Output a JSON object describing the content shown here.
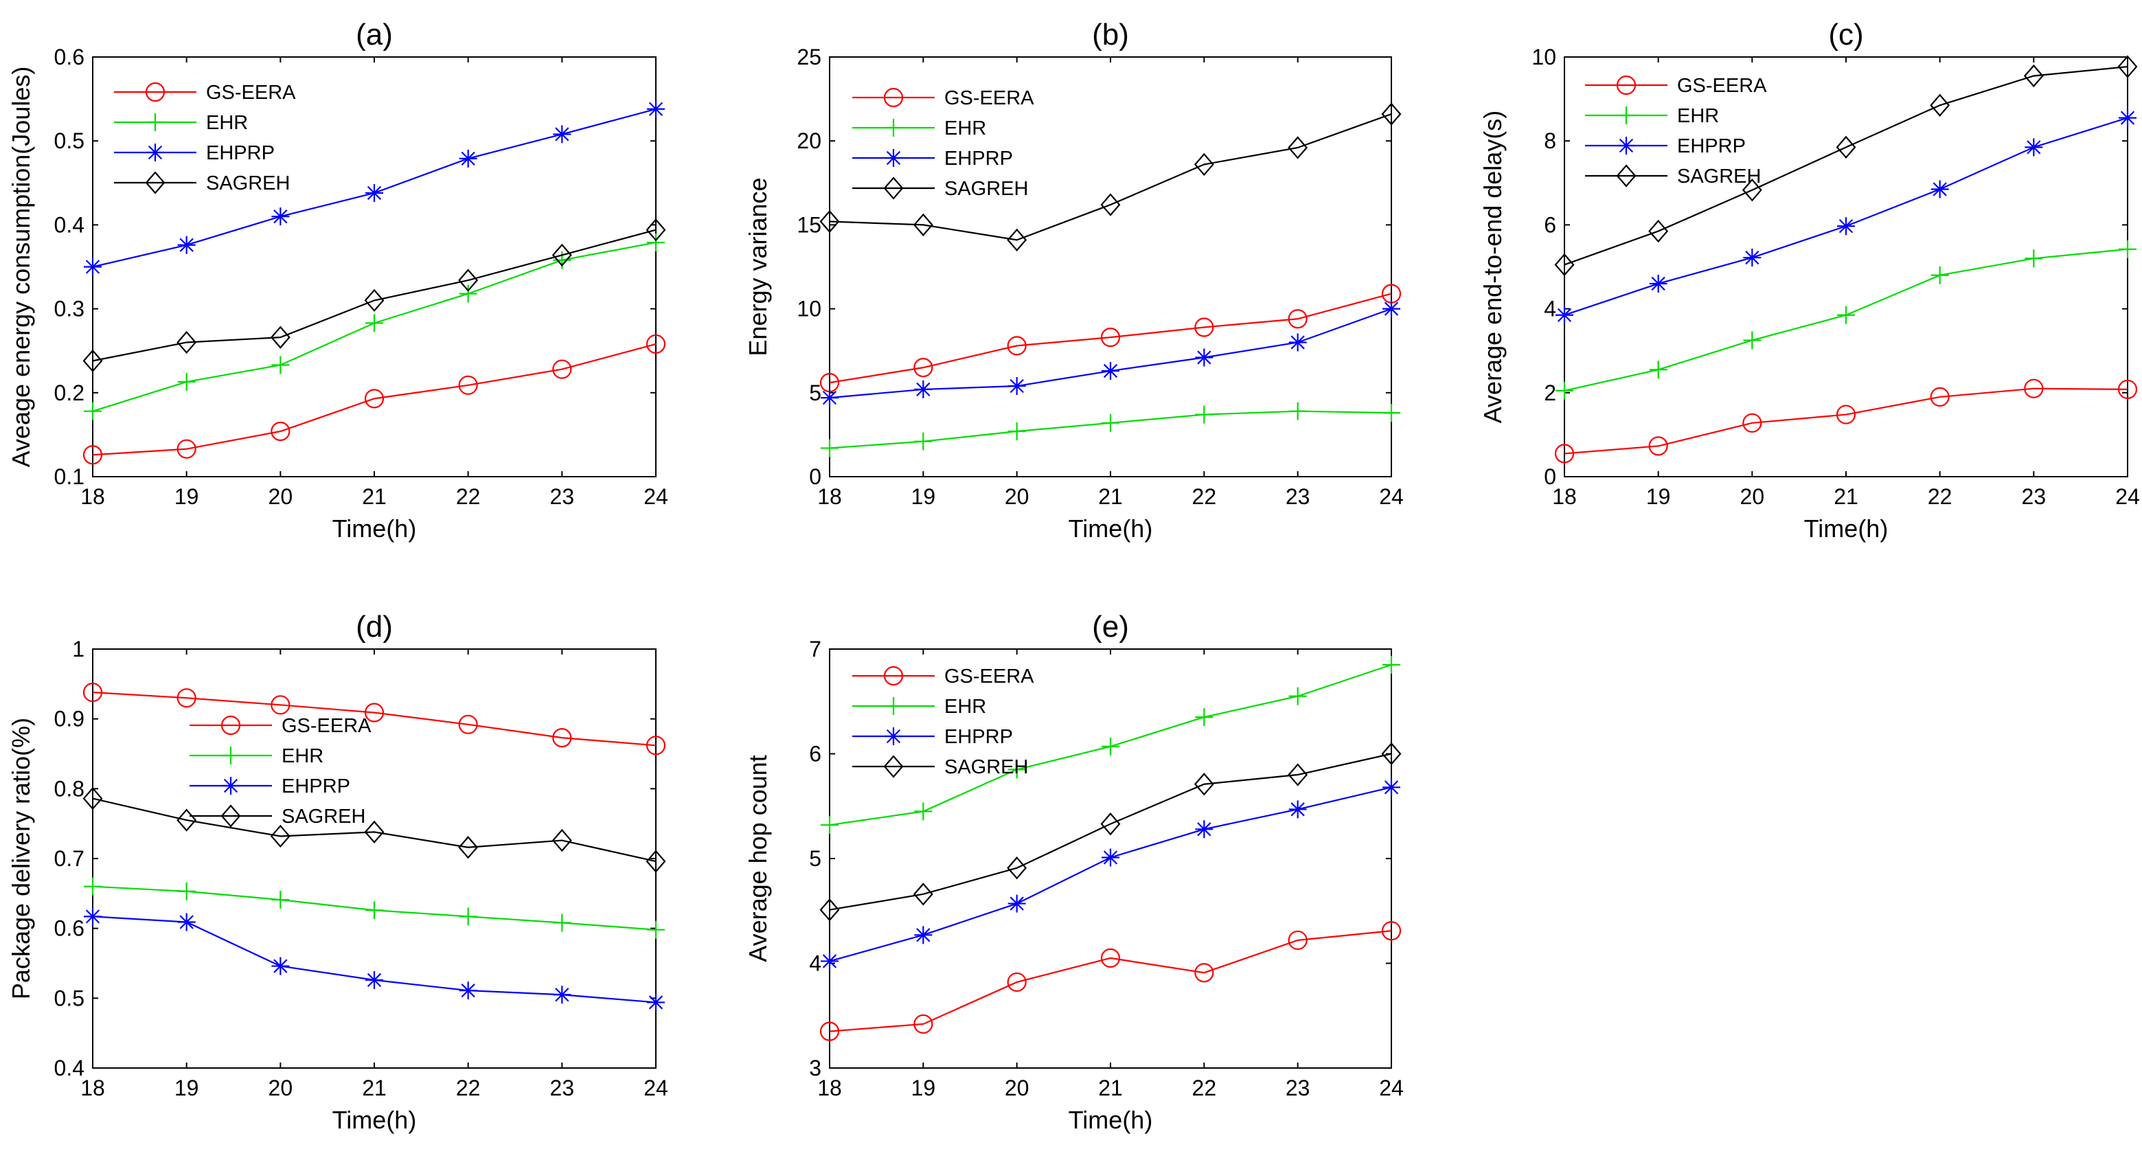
{
  "colors": {
    "GS-EERA": "#ff0000",
    "EHR": "#00dd00",
    "EHPRP": "#0000ff",
    "SAGREH": "#000000"
  },
  "markers": {
    "GS-EERA": "circle",
    "EHR": "plus",
    "EHPRP": "asterisk",
    "SAGREH": "diamond"
  },
  "chart_data": [
    {
      "type": "line",
      "title": "(a)",
      "xlabel": "Time(h)",
      "ylabel": "Aveage energy consumption(Joules)",
      "x": [
        18,
        19,
        20,
        21,
        22,
        23,
        24
      ],
      "xlim": [
        18,
        24
      ],
      "ylim": [
        0.1,
        0.6
      ],
      "yticks": [
        0.1,
        0.2,
        0.3,
        0.4,
        0.5,
        0.6
      ],
      "ytick_labels": [
        "0.1",
        "0.2",
        "0.3",
        "0.4",
        "0.5",
        "0.6"
      ],
      "legend": "top-left",
      "series": [
        {
          "name": "GS-EERA",
          "values": [
            0.126,
            0.133,
            0.154,
            0.193,
            0.209,
            0.228,
            0.258
          ]
        },
        {
          "name": "EHR",
          "values": [
            0.178,
            0.213,
            0.233,
            0.283,
            0.318,
            0.358,
            0.379
          ]
        },
        {
          "name": "EHPRP",
          "values": [
            0.35,
            0.376,
            0.41,
            0.438,
            0.479,
            0.508,
            0.538
          ]
        },
        {
          "name": "SAGREH",
          "values": [
            0.238,
            0.26,
            0.266,
            0.31,
            0.334,
            0.364,
            0.394
          ]
        }
      ]
    },
    {
      "type": "line",
      "title": "(b)",
      "xlabel": "Time(h)",
      "ylabel": "Energy variance",
      "x": [
        18,
        19,
        20,
        21,
        22,
        23,
        24
      ],
      "xlim": [
        18,
        24
      ],
      "ylim": [
        0,
        25
      ],
      "yticks": [
        0,
        5,
        10,
        15,
        20,
        25
      ],
      "ytick_labels": [
        "0",
        "5",
        "10",
        "15",
        "20",
        "25"
      ],
      "legend": "top-left",
      "series": [
        {
          "name": "GS-EERA",
          "values": [
            5.6,
            6.5,
            7.8,
            8.3,
            8.9,
            9.4,
            10.9
          ]
        },
        {
          "name": "EHR",
          "values": [
            1.7,
            2.1,
            2.7,
            3.2,
            3.7,
            3.9,
            3.8
          ]
        },
        {
          "name": "EHPRP",
          "values": [
            4.7,
            5.2,
            5.4,
            6.3,
            7.1,
            8.0,
            10.0
          ]
        },
        {
          "name": "SAGREH",
          "values": [
            15.2,
            15.0,
            14.1,
            16.2,
            18.6,
            19.6,
            21.6
          ]
        }
      ]
    },
    {
      "type": "line",
      "title": "(c)",
      "xlabel": "Time(h)",
      "ylabel": "Average end-to-end delay(s)",
      "x": [
        18,
        19,
        20,
        21,
        22,
        23,
        24
      ],
      "xlim": [
        18,
        24
      ],
      "ylim": [
        0,
        10
      ],
      "yticks": [
        0,
        2,
        4,
        6,
        8,
        10
      ],
      "ytick_labels": [
        "0",
        "2",
        "4",
        "6",
        "8",
        "10"
      ],
      "legend": "top-left",
      "series": [
        {
          "name": "GS-EERA",
          "values": [
            0.55,
            0.73,
            1.28,
            1.48,
            1.9,
            2.1,
            2.08
          ]
        },
        {
          "name": "EHR",
          "values": [
            2.05,
            2.55,
            3.25,
            3.85,
            4.8,
            5.2,
            5.42
          ]
        },
        {
          "name": "EHPRP",
          "values": [
            3.85,
            4.6,
            5.22,
            5.97,
            6.85,
            7.85,
            8.55
          ]
        },
        {
          "name": "SAGREH",
          "values": [
            5.05,
            5.85,
            6.83,
            7.85,
            8.85,
            9.55,
            9.77
          ]
        }
      ]
    },
    {
      "type": "line",
      "title": "(d)",
      "xlabel": "Time(h)",
      "ylabel": "Package delivery ratio(%)",
      "x": [
        18,
        19,
        20,
        21,
        22,
        23,
        24
      ],
      "xlim": [
        18,
        24
      ],
      "ylim": [
        0.4,
        1.0
      ],
      "yticks": [
        0.4,
        0.5,
        0.6,
        0.7,
        0.8,
        0.9,
        1.0
      ],
      "ytick_labels": [
        "0.4",
        "0.5",
        "0.6",
        "0.7",
        "0.8",
        "0.9",
        "1"
      ],
      "legend": "top-center",
      "series": [
        {
          "name": "GS-EERA",
          "values": [
            0.938,
            0.93,
            0.92,
            0.909,
            0.892,
            0.873,
            0.862
          ]
        },
        {
          "name": "EHR",
          "values": [
            0.66,
            0.653,
            0.641,
            0.626,
            0.617,
            0.608,
            0.598
          ]
        },
        {
          "name": "EHPRP",
          "values": [
            0.617,
            0.609,
            0.546,
            0.526,
            0.511,
            0.505,
            0.494
          ]
        },
        {
          "name": "SAGREH",
          "values": [
            0.786,
            0.755,
            0.732,
            0.738,
            0.716,
            0.726,
            0.696
          ]
        }
      ]
    },
    {
      "type": "line",
      "title": "(e)",
      "xlabel": "Time(h)",
      "ylabel": "Average hop count",
      "x": [
        18,
        19,
        20,
        21,
        22,
        23,
        24
      ],
      "xlim": [
        18,
        24
      ],
      "ylim": [
        3,
        7
      ],
      "yticks": [
        3,
        4,
        5,
        6,
        7
      ],
      "ytick_labels": [
        "3",
        "4",
        "5",
        "6",
        "7"
      ],
      "legend": "top-left",
      "series": [
        {
          "name": "GS-EERA",
          "values": [
            3.35,
            3.42,
            3.82,
            4.05,
            3.91,
            4.22,
            4.31
          ]
        },
        {
          "name": "EHR",
          "values": [
            5.32,
            5.45,
            5.85,
            6.07,
            6.35,
            6.55,
            6.85
          ]
        },
        {
          "name": "EHPRP",
          "values": [
            4.02,
            4.27,
            4.57,
            5.01,
            5.28,
            5.47,
            5.68
          ]
        },
        {
          "name": "SAGREH",
          "values": [
            4.51,
            4.66,
            4.91,
            5.33,
            5.71,
            5.8,
            6.0
          ]
        }
      ]
    }
  ]
}
